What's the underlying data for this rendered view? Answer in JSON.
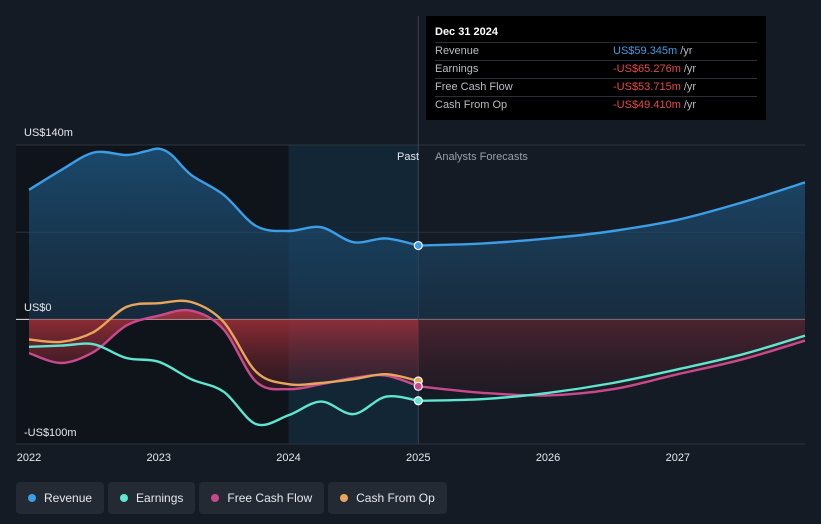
{
  "chart_data": {
    "type": "area",
    "y_labels": {
      "top": "US$140m",
      "zero": "US$0",
      "bottom": "-US$100m"
    },
    "ylim": [
      -100,
      140
    ],
    "xlim": [
      2021.9,
      2027.98
    ],
    "x_ticks": [
      {
        "value": 2022,
        "label": "2022"
      },
      {
        "value": 2023,
        "label": "2023"
      },
      {
        "value": 2024,
        "label": "2024"
      },
      {
        "value": 2025,
        "label": "2025"
      },
      {
        "value": 2026,
        "label": "2026"
      },
      {
        "value": 2027,
        "label": "2027"
      }
    ],
    "past_label": "Past",
    "forecast_label": "Analysts Forecasts",
    "divider_x": 2025.0,
    "highlight_range": [
      2024.0,
      2025.0
    ],
    "series": [
      {
        "name": "Revenue",
        "key": "revenue",
        "color": "#3b9ee6",
        "past": [
          [
            2022.0,
            104
          ],
          [
            2022.25,
            120
          ],
          [
            2022.5,
            134
          ],
          [
            2022.75,
            132
          ],
          [
            2022.9,
            135
          ],
          [
            2023.0,
            137
          ],
          [
            2023.1,
            132
          ],
          [
            2023.25,
            116
          ],
          [
            2023.5,
            100
          ],
          [
            2023.75,
            75
          ],
          [
            2024.0,
            71
          ],
          [
            2024.25,
            74
          ],
          [
            2024.5,
            62
          ],
          [
            2024.75,
            65
          ],
          [
            2025.0,
            59.3
          ]
        ],
        "forecast": [
          [
            2025.0,
            59.3
          ],
          [
            2025.5,
            61
          ],
          [
            2026.0,
            65
          ],
          [
            2026.5,
            71
          ],
          [
            2027.0,
            80
          ],
          [
            2027.5,
            94
          ],
          [
            2027.98,
            110
          ]
        ],
        "marker": [
          2025.0,
          59.3
        ]
      },
      {
        "name": "Earnings",
        "key": "earnings",
        "color": "#5ee6d0",
        "past": [
          [
            2022.0,
            -22
          ],
          [
            2022.25,
            -21
          ],
          [
            2022.5,
            -20
          ],
          [
            2022.75,
            -31
          ],
          [
            2023.0,
            -34
          ],
          [
            2023.25,
            -48
          ],
          [
            2023.5,
            -58
          ],
          [
            2023.75,
            -84
          ],
          [
            2024.0,
            -77
          ],
          [
            2024.25,
            -66
          ],
          [
            2024.5,
            -76
          ],
          [
            2024.75,
            -62
          ],
          [
            2025.0,
            -65.3
          ]
        ],
        "forecast": [
          [
            2025.0,
            -65.3
          ],
          [
            2025.5,
            -64
          ],
          [
            2026.0,
            -59
          ],
          [
            2026.5,
            -51
          ],
          [
            2027.0,
            -40
          ],
          [
            2027.5,
            -28
          ],
          [
            2027.98,
            -13
          ]
        ],
        "marker": [
          2025.0,
          -65.3
        ]
      },
      {
        "name": "Free Cash Flow",
        "key": "fcf",
        "color": "#c94a8c",
        "past": [
          [
            2022.0,
            -27
          ],
          [
            2022.25,
            -35
          ],
          [
            2022.5,
            -26
          ],
          [
            2022.75,
            -5
          ],
          [
            2023.0,
            3
          ],
          [
            2023.25,
            7
          ],
          [
            2023.5,
            -8
          ],
          [
            2023.75,
            -50
          ],
          [
            2024.0,
            -56
          ],
          [
            2024.25,
            -52
          ],
          [
            2024.5,
            -47
          ],
          [
            2024.75,
            -45
          ],
          [
            2025.0,
            -53.7
          ]
        ],
        "forecast": [
          [
            2025.0,
            -53.7
          ],
          [
            2025.5,
            -59
          ],
          [
            2026.0,
            -61
          ],
          [
            2026.5,
            -56
          ],
          [
            2027.0,
            -44
          ],
          [
            2027.5,
            -32
          ],
          [
            2027.98,
            -17
          ]
        ],
        "marker": [
          2025.0,
          -53.7
        ]
      },
      {
        "name": "Cash From Op",
        "key": "cfo",
        "color": "#e8a65c",
        "past": [
          [
            2022.0,
            -16
          ],
          [
            2022.25,
            -18
          ],
          [
            2022.5,
            -10
          ],
          [
            2022.75,
            10
          ],
          [
            2023.0,
            13
          ],
          [
            2023.25,
            14
          ],
          [
            2023.5,
            -2
          ],
          [
            2023.75,
            -42
          ],
          [
            2024.0,
            -52
          ],
          [
            2024.25,
            -51
          ],
          [
            2024.5,
            -48
          ],
          [
            2024.75,
            -44
          ],
          [
            2025.0,
            -49.4
          ]
        ],
        "marker": [
          2025.0,
          -49.4
        ]
      }
    ]
  },
  "tooltip": {
    "date": "Dec 31 2024",
    "rows": [
      {
        "label": "Revenue",
        "value": "US$59.345m",
        "unit": "/yr",
        "color": "#3b9ee6"
      },
      {
        "label": "Earnings",
        "value": "-US$65.276m",
        "unit": "/yr",
        "color": "#e8484c"
      },
      {
        "label": "Free Cash Flow",
        "value": "-US$53.715m",
        "unit": "/yr",
        "color": "#e8484c"
      },
      {
        "label": "Cash From Op",
        "value": "-US$49.410m",
        "unit": "/yr",
        "color": "#e8484c"
      }
    ]
  },
  "legend": [
    {
      "label": "Revenue",
      "color": "#3b9ee6"
    },
    {
      "label": "Earnings",
      "color": "#5ee6d0"
    },
    {
      "label": "Free Cash Flow",
      "color": "#c94a8c"
    },
    {
      "label": "Cash From Op",
      "color": "#e8a65c"
    }
  ]
}
